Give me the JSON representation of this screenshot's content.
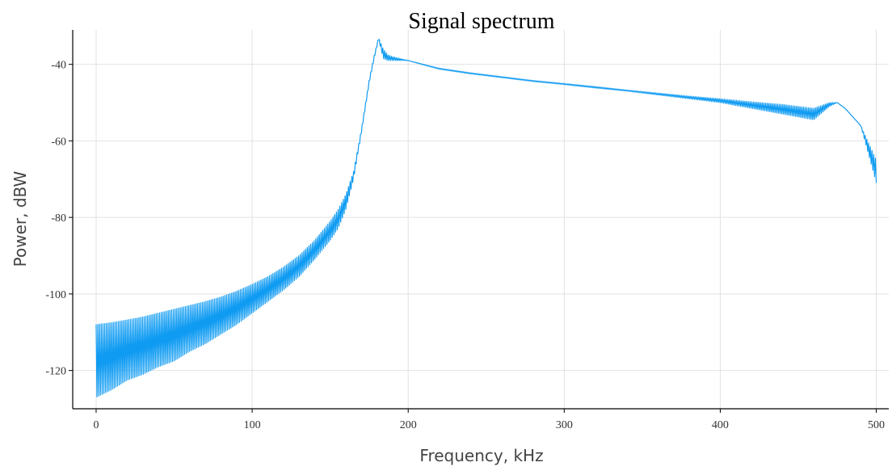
{
  "chart_data": {
    "type": "line",
    "title": "Signal spectrum",
    "xlabel": "Frequency, kHz",
    "ylabel": "Power, dBW",
    "xlim": [
      -15,
      508
    ],
    "ylim": [
      -130,
      -31
    ],
    "xticks": [
      0,
      100,
      200,
      300,
      400,
      500
    ],
    "yticks": [
      -40,
      -60,
      -80,
      -100,
      -120
    ],
    "grid": true,
    "legend": "none",
    "line_color": "#0f9bf2",
    "series": [
      {
        "x": [
          0,
          10,
          20,
          30,
          40,
          50,
          60,
          70,
          80,
          90,
          100,
          110,
          120,
          130,
          140,
          150,
          155,
          160,
          165,
          170,
          175,
          178,
          181,
          184,
          187,
          190,
          195,
          200,
          210,
          220,
          240,
          260,
          280,
          300,
          320,
          340,
          360,
          380,
          400,
          420,
          440,
          460,
          470,
          475,
          480,
          490,
          500
        ],
        "upper": [
          -108,
          -107.5,
          -106.8,
          -106,
          -105,
          -104,
          -103,
          -102,
          -100.8,
          -99.3,
          -97.5,
          -95.5,
          -93,
          -90,
          -86,
          -81,
          -78,
          -74,
          -68,
          -57,
          -44,
          -38,
          -33,
          -36,
          -37.5,
          -38,
          -38.5,
          -39,
          -40,
          -41,
          -42.2,
          -43.2,
          -44.2,
          -45,
          -45.8,
          -46.7,
          -47.5,
          -48.3,
          -49,
          -49.8,
          -50.5,
          -51.5,
          -50,
          -50,
          -51.5,
          -56,
          -65
        ],
        "lower": [
          -127,
          -125,
          -122.5,
          -121,
          -119,
          -117.5,
          -115,
          -113,
          -110.5,
          -108,
          -105,
          -102,
          -99,
          -95.5,
          -91,
          -86,
          -83,
          -78,
          -70,
          -58,
          -45,
          -39,
          -33.5,
          -38.5,
          -39,
          -39,
          -39,
          -39,
          -40.2,
          -41.3,
          -42.5,
          -43.5,
          -44.5,
          -45.3,
          -46.2,
          -47,
          -48,
          -49,
          -50,
          -51.5,
          -53,
          -54.5,
          -51,
          -50,
          -51.5,
          -56,
          -71
        ]
      }
    ]
  }
}
